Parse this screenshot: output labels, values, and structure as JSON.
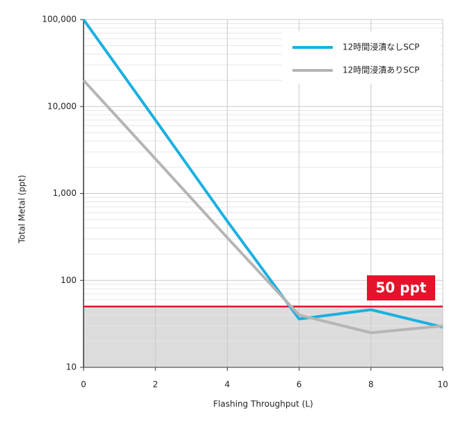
{
  "chart_data": {
    "type": "line",
    "x_label": "Flashing Throughput (L)",
    "y_label": "Total Metal (ppt)",
    "x": [
      0,
      2,
      4,
      6,
      8,
      10
    ],
    "series": [
      {
        "name": "12時間浸漬なしSCP",
        "color": "#1ab0e0",
        "values": [
          100000,
          7000,
          480,
          36,
          46,
          29
        ]
      },
      {
        "name": "12時間浸漬ありSCP",
        "color": "#b5b5b5",
        "values": [
          20000,
          2500,
          310,
          40,
          25,
          30
        ]
      }
    ],
    "xlim": [
      0,
      10
    ],
    "xticks": [
      0,
      2,
      4,
      6,
      8,
      10
    ],
    "ylim": [
      10,
      100000
    ],
    "log_y": true,
    "yticks": [
      10,
      100,
      {
        "value": 1000,
        "label": "1,000"
      },
      {
        "value": 10000,
        "label": "10,000"
      },
      {
        "value": 100000,
        "label": "100,000"
      }
    ],
    "grid": true,
    "legend": "upper right",
    "threshold": {
      "value": 50,
      "label": "50 ppt",
      "color": "#e3132c",
      "fill": "#dcdcdc"
    }
  }
}
